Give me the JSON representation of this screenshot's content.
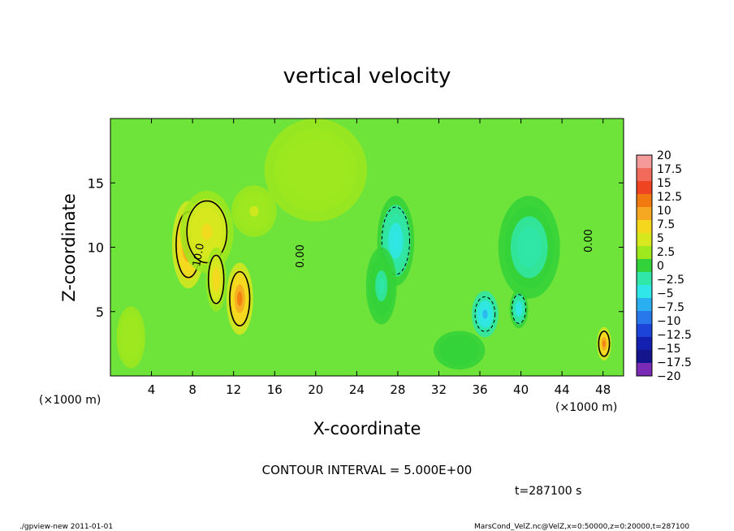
{
  "chart_data": {
    "type": "heatmap",
    "title": "vertical velocity",
    "xlabel": "X-coordinate",
    "ylabel": "Z-coordinate",
    "x_unit_left": "(×1000 m)",
    "x_unit_right": "(×1000 m)",
    "xlim": [
      0,
      50
    ],
    "ylim": [
      0,
      20
    ],
    "x_ticks": [
      4,
      8,
      12,
      16,
      20,
      24,
      28,
      32,
      36,
      40,
      44,
      48
    ],
    "y_ticks": [
      5,
      10,
      15
    ],
    "colorbar": {
      "levels": [
        20,
        17.5,
        15,
        12.5,
        10,
        7.5,
        5,
        2.5,
        0,
        -2.5,
        -5,
        -7.5,
        -10,
        -12.5,
        -15,
        -17.5,
        -20
      ],
      "labels": [
        "20",
        "17.5",
        "15",
        "12.5",
        "10",
        "7.5",
        "5",
        "2.5",
        "0",
        "−2.5",
        "−5",
        "−7.5",
        "−10",
        "−12.5",
        "−15",
        "−17.5",
        "−20"
      ],
      "colors": [
        "#f59a9a",
        "#f26a5a",
        "#ee4422",
        "#f07a10",
        "#f5a820",
        "#f5d81e",
        "#d8e81e",
        "#9ee81e",
        "#34d23a",
        "#30e6a8",
        "#30e6e6",
        "#2ab0f0",
        "#2878ec",
        "#1c44d8",
        "#1420b0",
        "#14148c",
        "#7a2ab4"
      ]
    },
    "contour_labels": [
      "10.0",
      "0.00",
      "0.00"
    ],
    "contour_interval_text": "CONTOUR INTERVAL = 5.000E+00",
    "blobs": [
      {
        "x": 7.6,
        "z": 10.2,
        "sx": 1.6,
        "sz": 3.4,
        "w": 11
      },
      {
        "x": 9.4,
        "z": 11.2,
        "sx": 2.6,
        "sz": 3.2,
        "w": 5
      },
      {
        "x": 12.6,
        "z": 6.0,
        "sx": 1.3,
        "sz": 2.8,
        "w": 11
      },
      {
        "x": 10.3,
        "z": 7.5,
        "sx": 1.0,
        "sz": 2.5,
        "w": 7
      },
      {
        "x": 14.0,
        "z": 12.8,
        "sx": 2.2,
        "sz": 2.0,
        "w": 2.5
      },
      {
        "x": 27.8,
        "z": 10.5,
        "sx": 1.8,
        "sz": 3.5,
        "w": -6
      },
      {
        "x": 26.4,
        "z": 7.0,
        "sx": 1.5,
        "sz": 3.0,
        "w": -3
      },
      {
        "x": 40.8,
        "z": 10.0,
        "sx": 3.0,
        "sz": 4.0,
        "w": -4
      },
      {
        "x": 36.5,
        "z": 4.8,
        "sx": 1.3,
        "sz": 1.8,
        "w": -8
      },
      {
        "x": 39.8,
        "z": 5.2,
        "sx": 0.9,
        "sz": 1.5,
        "w": -7
      },
      {
        "x": 48.1,
        "z": 2.5,
        "sx": 0.7,
        "sz": 1.3,
        "w": 11
      },
      {
        "x": 2.0,
        "z": 3.0,
        "sx": 1.4,
        "sz": 2.4,
        "w": 2
      },
      {
        "x": 20.0,
        "z": 16.0,
        "sx": 5.0,
        "sz": 4.0,
        "w": 1
      },
      {
        "x": 34.0,
        "z": 2.0,
        "sx": 2.5,
        "sz": 1.5,
        "w": -1.5
      }
    ]
  },
  "time_label": "t=287100 s",
  "footer_left": "./gpview-new   2011-01-01",
  "footer_right": "MarsCond_VelZ.nc@VelZ,x=0:50000,z=0:20000,t=287100"
}
